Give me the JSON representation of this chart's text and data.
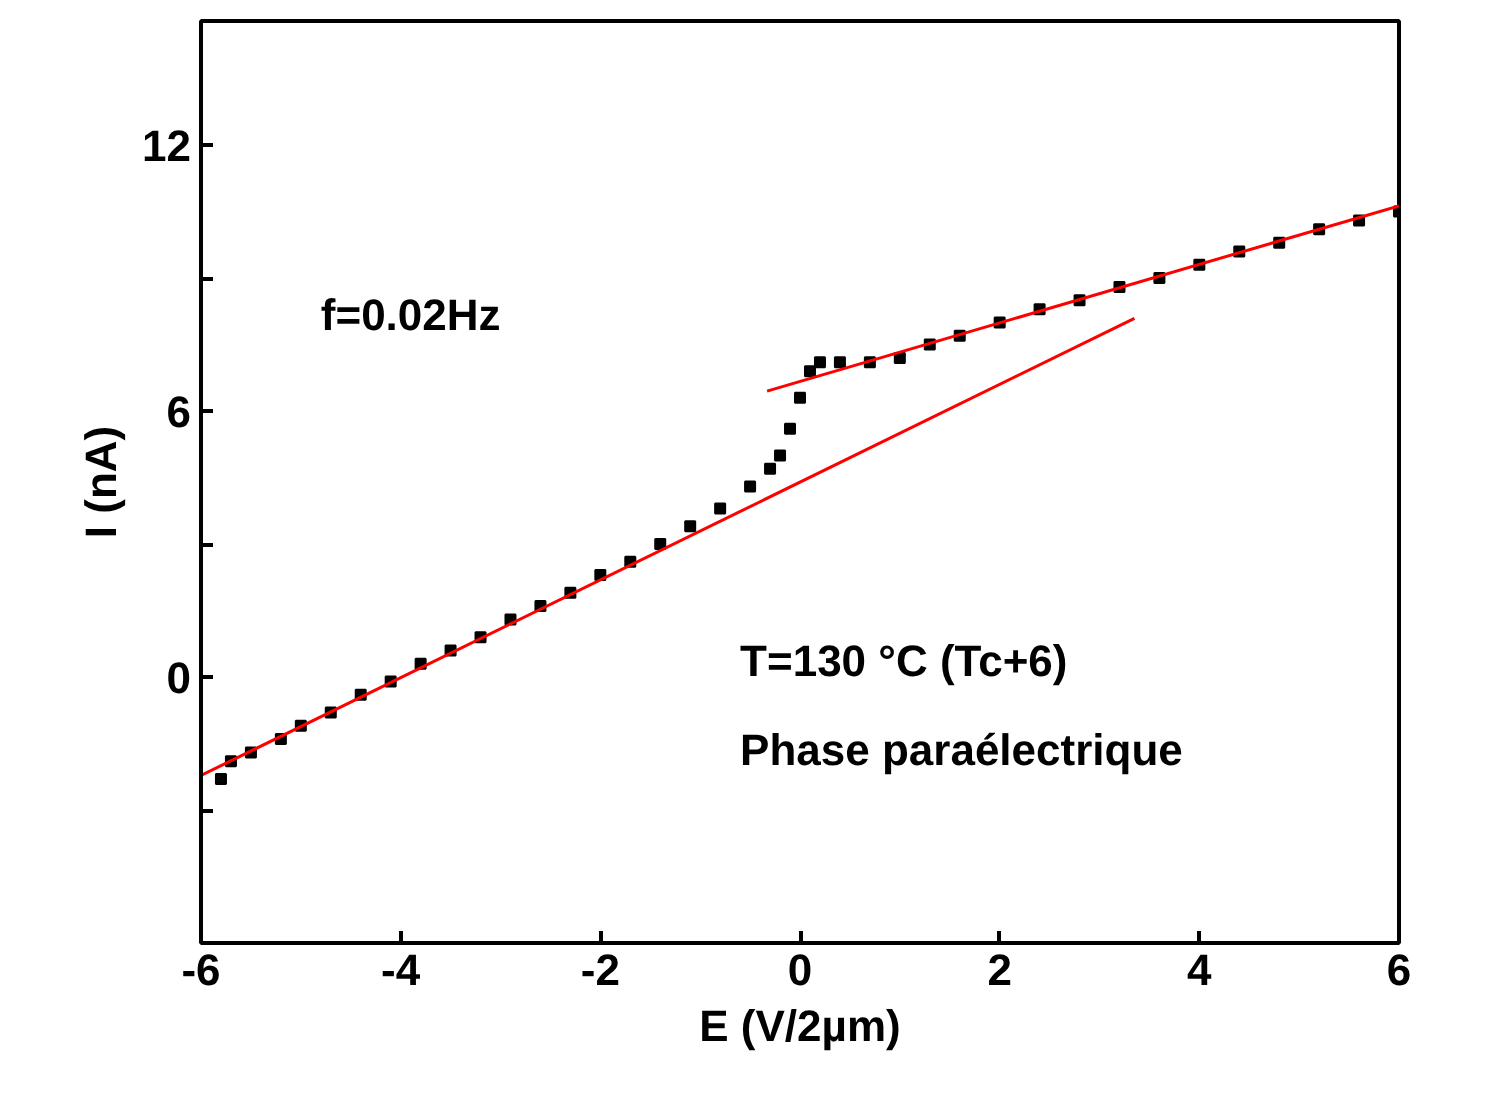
{
  "chart_data": {
    "type": "scatter",
    "xlabel": "E (V/2µm)",
    "ylabel": "I (nA)",
    "xlim": [
      -6,
      6
    ],
    "ylim": [
      -6,
      14.8
    ],
    "xticks": [
      -6,
      -4,
      -2,
      0,
      2,
      4,
      6
    ],
    "yticks": [
      {
        "value": -3,
        "label": null
      },
      0,
      {
        "value": 3,
        "label": null
      },
      6,
      {
        "value": 9,
        "label": null
      },
      12
    ],
    "grid": false,
    "annotations": [
      "f=0.02Hz",
      "T=130 °C (Tc+6)",
      "Phase paraélectrique"
    ],
    "series": [
      {
        "marker": "square",
        "color": "#000000",
        "x": [
          -5.8,
          -5.7,
          -5.5,
          -5.2,
          -5.0,
          -4.7,
          -4.4,
          -4.1,
          -3.8,
          -3.5,
          -3.2,
          -2.9,
          -2.6,
          -2.3,
          -2.0,
          -1.7,
          -1.4,
          -1.1,
          -0.8,
          -0.5,
          -0.3,
          -0.2,
          -0.1,
          0.0,
          0.1,
          0.2,
          0.4,
          0.7,
          1.0,
          1.3,
          1.6,
          2.0,
          2.4,
          2.8,
          3.2,
          3.6,
          4.0,
          4.4,
          4.8,
          5.2,
          5.6,
          6.0
        ],
        "values": [
          -2.3,
          -1.9,
          -1.7,
          -1.4,
          -1.1,
          -0.8,
          -0.4,
          -0.1,
          0.3,
          0.6,
          0.9,
          1.3,
          1.6,
          1.9,
          2.3,
          2.6,
          3.0,
          3.4,
          3.8,
          4.3,
          4.7,
          5.0,
          5.6,
          6.3,
          6.9,
          7.1,
          7.1,
          7.1,
          7.2,
          7.5,
          7.7,
          8.0,
          8.3,
          8.5,
          8.8,
          9.0,
          9.3,
          9.6,
          9.8,
          10.1,
          10.3,
          10.5
        ]
      },
      {
        "type": "line",
        "marker": "none",
        "color": "#ff0000",
        "x": [
          -6,
          3.35
        ],
        "values": [
          -2.22,
          8.09
        ]
      },
      {
        "type": "line",
        "marker": "none",
        "color": "#ff0000",
        "x": [
          -0.33,
          6
        ],
        "values": [
          6.45,
          10.63
        ]
      }
    ]
  }
}
